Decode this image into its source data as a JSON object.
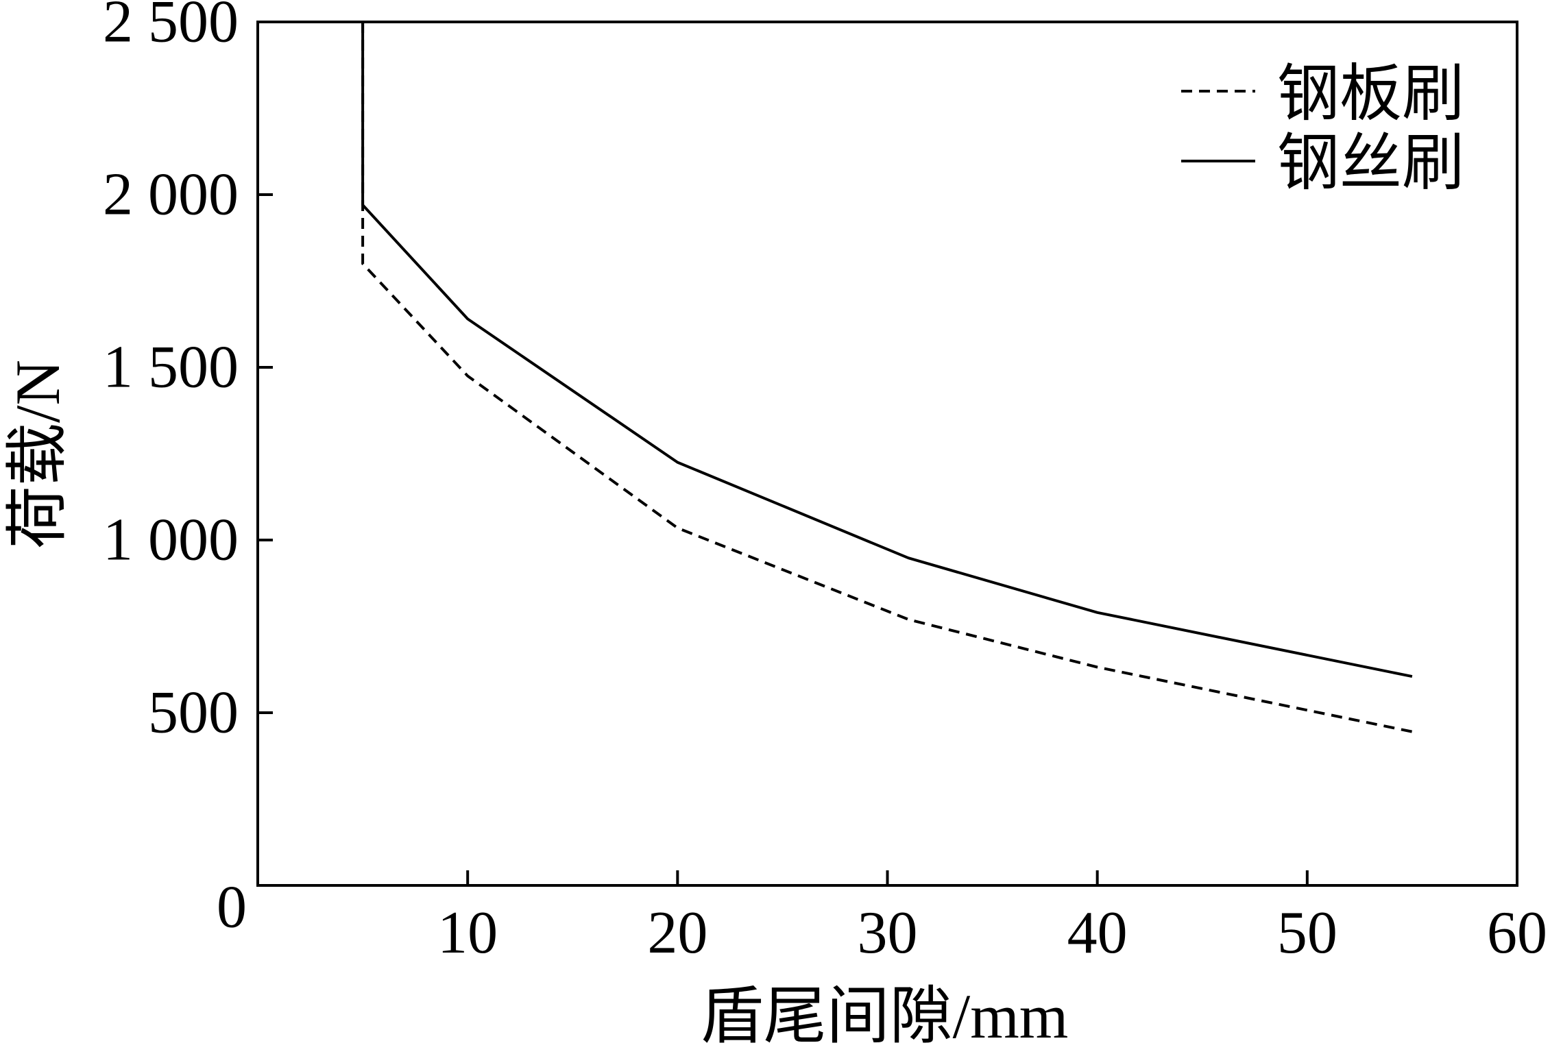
{
  "chart_data": {
    "type": "line",
    "xlabel": "盾尾间隙/mm",
    "ylabel": "荷载/N",
    "xlim": [
      0,
      60
    ],
    "ylim": [
      0,
      2500
    ],
    "x_ticks": {
      "values": [
        10,
        20,
        30,
        40,
        50,
        60
      ],
      "labels": [
        "10",
        "20",
        "30",
        "40",
        "50",
        "60"
      ]
    },
    "y_ticks": {
      "values": [
        0,
        500,
        1000,
        1500,
        2000,
        2500
      ],
      "labels": [
        "0",
        "500",
        "1 000",
        "1 500",
        "2 000",
        "2 500"
      ]
    },
    "grid": false,
    "legend_position": "top-right",
    "series": [
      {
        "name": "钢板刷",
        "style": "dashed",
        "color": "#000000",
        "x": [
          5,
          5,
          10,
          20,
          31,
          40,
          55
        ],
        "y": [
          2500,
          1800,
          1475,
          1035,
          770,
          632,
          445
        ]
      },
      {
        "name": "钢丝刷",
        "style": "solid",
        "color": "#000000",
        "x": [
          5,
          5,
          10,
          20,
          31,
          40,
          55
        ],
        "y": [
          2500,
          1970,
          1640,
          1225,
          948,
          790,
          605
        ]
      }
    ]
  }
}
